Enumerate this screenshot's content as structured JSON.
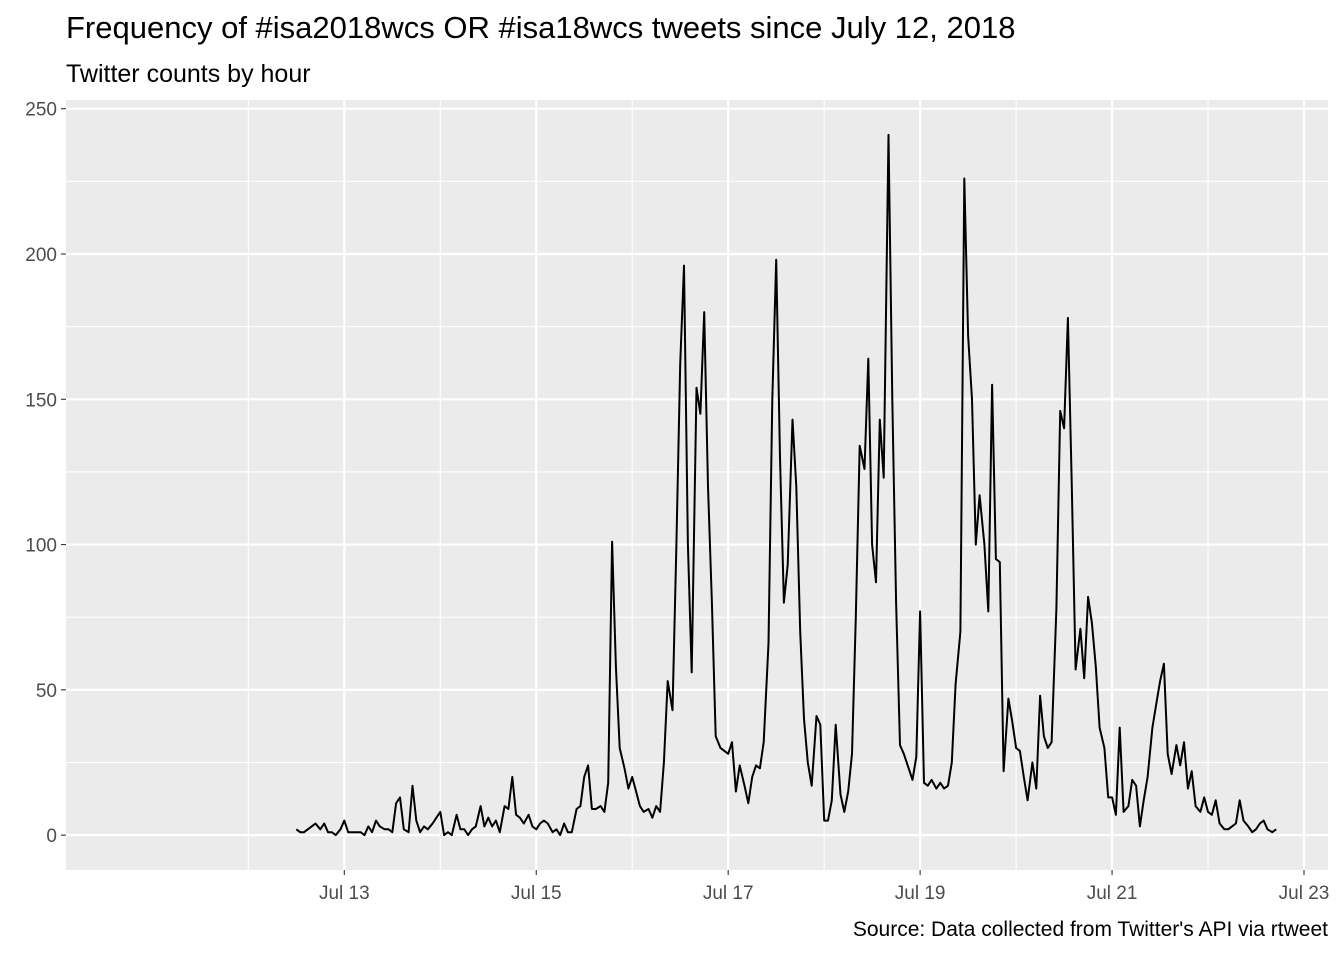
{
  "title": "Frequency of #isa2018wcs OR #isa18wcs tweets since July 12, 2018",
  "subtitle": "Twitter counts by hour",
  "caption": "Source: Data collected from Twitter's API via rtweet",
  "colors": {
    "panel": "#ebebeb",
    "grid": "#ffffff",
    "line": "#000000",
    "tick_text": "#4d4d4d"
  },
  "chart_data": {
    "type": "line",
    "x_unit": "days since Jul 12, 2018 00:00",
    "xlim": [
      10.1,
      23.25
    ],
    "ylim": [
      -12,
      253
    ],
    "x_ticks": [
      {
        "value": 13,
        "label": "Jul 13"
      },
      {
        "value": 15,
        "label": "Jul 15"
      },
      {
        "value": 17,
        "label": "Jul 17"
      },
      {
        "value": 19,
        "label": "Jul 19"
      },
      {
        "value": 21,
        "label": "Jul 21"
      },
      {
        "value": 23,
        "label": "Jul 23"
      }
    ],
    "y_ticks": [
      0,
      50,
      100,
      150,
      200,
      250
    ],
    "grid": true,
    "series": [
      {
        "x": [
          12.5,
          12.54,
          12.58,
          12.62,
          12.66,
          12.7,
          12.75,
          12.79,
          12.83,
          12.87,
          12.91,
          12.96,
          13.0,
          13.04,
          13.08,
          13.12,
          13.17,
          13.21,
          13.25,
          13.29,
          13.33,
          13.37,
          13.42,
          13.46,
          13.5,
          13.54,
          13.58,
          13.62,
          13.67,
          13.71,
          13.75,
          13.79,
          13.83,
          13.87,
          13.92,
          13.96,
          14.0,
          14.04,
          14.08,
          14.12,
          14.17,
          14.21,
          14.25,
          14.29,
          14.33,
          14.37,
          14.42,
          14.46,
          14.5,
          14.54,
          14.58,
          14.62,
          14.67,
          14.71,
          14.75,
          14.79,
          14.83,
          14.87,
          14.92,
          14.96,
          15.0,
          15.04,
          15.08,
          15.12,
          15.17,
          15.21,
          15.25,
          15.29,
          15.33,
          15.37,
          15.42,
          15.46,
          15.5,
          15.54,
          15.58,
          15.62,
          15.67,
          15.71,
          15.75,
          15.79,
          15.83,
          15.87,
          15.92,
          15.96,
          16.0,
          16.04,
          16.08,
          16.12,
          16.17,
          16.21,
          16.25,
          16.29,
          16.33,
          16.37,
          16.42,
          16.46,
          16.5,
          16.54,
          16.58,
          16.62,
          16.67,
          16.71,
          16.75,
          16.79,
          16.83,
          16.87,
          16.92,
          16.96,
          17.0,
          17.04,
          17.08,
          17.12,
          17.17,
          17.21,
          17.25,
          17.29,
          17.33,
          17.37,
          17.42,
          17.46,
          17.5,
          17.54,
          17.58,
          17.62,
          17.67,
          17.71,
          17.75,
          17.79,
          17.83,
          17.87,
          17.92,
          17.96,
          18.0,
          18.04,
          18.08,
          18.12,
          18.17,
          18.21,
          18.25,
          18.29,
          18.33,
          18.37,
          18.42,
          18.46,
          18.5,
          18.54,
          18.58,
          18.62,
          18.67,
          18.71,
          18.75,
          18.79,
          18.83,
          18.87,
          18.92,
          18.96,
          19.0,
          19.04,
          19.08,
          19.12,
          19.17,
          19.21,
          19.25,
          19.29,
          19.33,
          19.37,
          19.42,
          19.46,
          19.5,
          19.54,
          19.58,
          19.62,
          19.67,
          19.71,
          19.75,
          19.79,
          19.83,
          19.87,
          19.92,
          19.96,
          20.0,
          20.04,
          20.08,
          20.12,
          20.17,
          20.21,
          20.25,
          20.29,
          20.33,
          20.37,
          20.42,
          20.46,
          20.5,
          20.54,
          20.58,
          20.62,
          20.67,
          20.71,
          20.75,
          20.79,
          20.83,
          20.87,
          20.92,
          20.96,
          21.0,
          21.04,
          21.08,
          21.12,
          21.17,
          21.21,
          21.25,
          21.29,
          21.33,
          21.37,
          21.42,
          21.46,
          21.5,
          21.54,
          21.58,
          21.62,
          21.67,
          21.71,
          21.75,
          21.79,
          21.83,
          21.87,
          21.92,
          21.96,
          22.0,
          22.04,
          22.08,
          22.12,
          22.17,
          22.21,
          22.25,
          22.29,
          22.33,
          22.37,
          22.42,
          22.46,
          22.5,
          22.54,
          22.58,
          22.62,
          22.67,
          22.71
        ],
        "y": [
          2,
          1,
          1,
          2,
          3,
          4,
          2,
          4,
          1,
          1,
          0,
          2,
          5,
          1,
          1,
          1,
          1,
          0,
          3,
          1,
          5,
          3,
          2,
          2,
          1,
          11,
          13,
          2,
          1,
          17,
          5,
          1,
          3,
          2,
          4,
          6,
          8,
          0,
          1,
          0,
          7,
          2,
          2,
          0,
          2,
          3,
          10,
          3,
          6,
          3,
          5,
          1,
          10,
          9,
          20,
          7,
          6,
          4,
          7,
          3,
          2,
          4,
          5,
          4,
          1,
          2,
          0,
          4,
          1,
          1,
          9,
          10,
          20,
          24,
          9,
          9,
          10,
          8,
          18,
          101,
          58,
          30,
          23,
          16,
          20,
          15,
          10,
          8,
          9,
          6,
          10,
          8,
          25,
          53,
          43,
          100,
          162,
          196,
          100,
          56,
          154,
          145,
          180,
          120,
          80,
          34,
          30,
          29,
          28,
          32,
          15,
          24,
          17,
          11,
          20,
          24,
          23,
          32,
          66,
          150,
          198,
          130,
          80,
          93,
          143,
          120,
          70,
          40,
          25,
          17,
          41,
          38,
          5,
          5,
          12,
          38,
          14,
          8,
          15,
          28,
          75,
          134,
          126,
          164,
          100,
          87,
          143,
          123,
          241,
          150,
          80,
          31,
          28,
          24,
          19,
          27,
          77,
          18,
          17,
          19,
          16,
          18,
          16,
          17,
          25,
          52,
          70,
          226,
          172,
          150,
          100,
          117,
          100,
          77,
          155,
          95,
          94,
          22,
          47,
          39,
          30,
          29,
          20,
          12,
          25,
          16,
          48,
          34,
          30,
          32,
          78,
          146,
          140,
          178,
          120,
          57,
          71,
          54,
          82,
          73,
          58,
          37,
          30,
          13,
          13,
          7,
          37,
          8,
          10,
          19,
          17,
          3,
          12,
          20,
          37,
          45,
          53,
          59,
          28,
          21,
          31,
          24,
          32,
          16,
          22,
          10,
          8,
          13,
          8,
          7,
          12,
          4,
          2,
          2,
          3,
          4,
          12,
          5,
          3,
          1,
          2,
          4,
          5,
          2,
          1,
          2
        ]
      }
    ]
  }
}
